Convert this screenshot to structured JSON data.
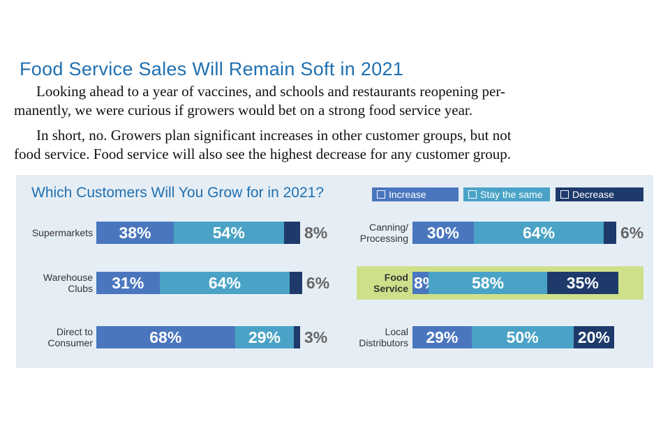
{
  "article": {
    "headline": "Food Service Sales Will Remain Soft in 2021",
    "paragraphs": [
      [
        "Looking ahead to a year of vaccines, and schools and restaurants reopening per-",
        "manently, we were curious if growers would bet on a strong food service year."
      ],
      [
        "In short, no. Growers plan significant increases in other customer groups, but not",
        "food service. Food service will also see the highest decrease for any customer group."
      ]
    ]
  },
  "colors": {
    "panel_bg": "#e6eef5",
    "increase": "#4a76be",
    "stay_the_same": "#4aa3c6",
    "decrease": "#1e3a6b",
    "highlight": "#cfe08a",
    "title_blue": "#1f6fb0"
  },
  "chart_data": {
    "type": "bar",
    "orientation": "horizontal",
    "stacked": true,
    "title": "Which Customers Will You Grow for in 2021?",
    "legend": [
      "Increase",
      "Stay the same",
      "Decrease"
    ],
    "legend_position": "top-right",
    "value_format": "percent",
    "grid": false,
    "categories": [
      "Supermarkets",
      "Warehouse\nClubs",
      "Direct to\nConsumer",
      "Canning/\nProcessing",
      "Food\nService",
      "Local\nDistributors"
    ],
    "highlighted_category": "Food\nService",
    "series": [
      {
        "name": "Increase",
        "values": [
          38,
          31,
          68,
          30,
          8,
          29
        ]
      },
      {
        "name": "Stay the same",
        "values": [
          54,
          64,
          29,
          64,
          58,
          50
        ]
      },
      {
        "name": "Decrease",
        "values": [
          8,
          6,
          3,
          6,
          35,
          20
        ]
      }
    ]
  }
}
